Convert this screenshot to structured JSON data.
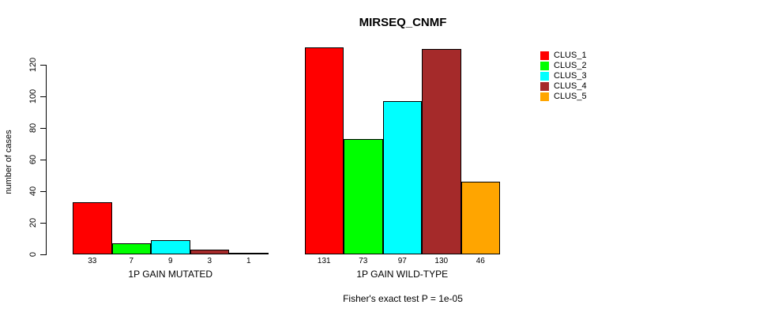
{
  "chart_data": {
    "type": "bar",
    "title": "MIRSEQ_CNMF",
    "ylabel": "number of cases",
    "xlabel": "",
    "caption": "Fisher's exact test P = 1e-05",
    "yticks": [
      0,
      20,
      40,
      60,
      80,
      100,
      120
    ],
    "ylim": [
      0,
      131
    ],
    "grid": false,
    "legend_position": "right",
    "categories": [
      "1P GAIN MUTATED",
      "1P GAIN WILD-TYPE"
    ],
    "series": [
      {
        "name": "CLUS_1",
        "color": "#FF0000",
        "values": [
          33,
          131
        ]
      },
      {
        "name": "CLUS_2",
        "color": "#00FF00",
        "values": [
          7,
          73
        ]
      },
      {
        "name": "CLUS_3",
        "color": "#00FFFF",
        "values": [
          9,
          97
        ]
      },
      {
        "name": "CLUS_4",
        "color": "#A52A2A",
        "values": [
          3,
          130
        ]
      },
      {
        "name": "CLUS_5",
        "color": "#FFA500",
        "values": [
          1,
          46
        ]
      }
    ]
  }
}
